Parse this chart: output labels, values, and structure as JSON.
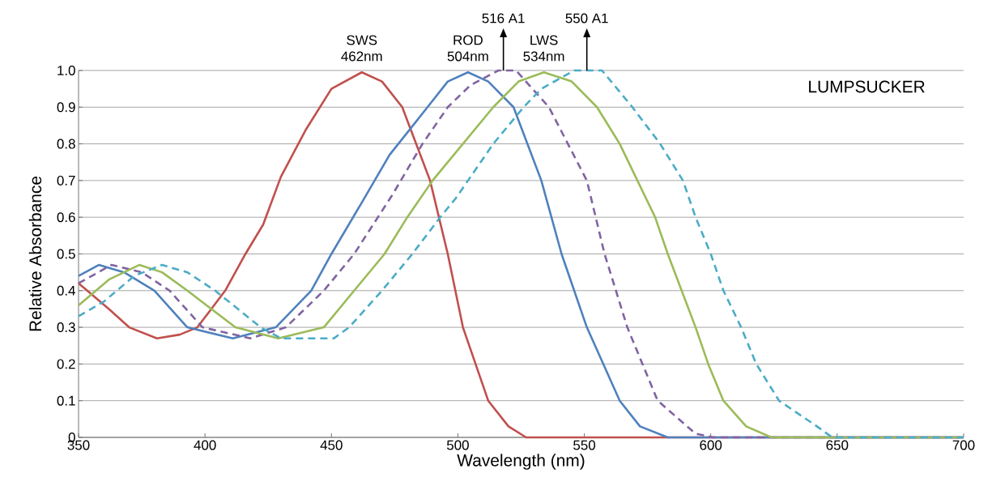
{
  "chart_data": {
    "type": "line",
    "title": "LUMPSUCKER",
    "xlabel": "Wavelength (nm)",
    "ylabel": "Relative Absorbance",
    "xlim": [
      350,
      700
    ],
    "ylim": [
      0,
      1.0
    ],
    "xticks": [
      350,
      400,
      450,
      500,
      550,
      600,
      650,
      700
    ],
    "yticks": [
      0,
      0.1,
      0.2,
      0.3,
      0.4,
      0.5,
      0.6,
      0.7,
      0.8,
      0.9,
      {
        "value": 1.0,
        "label": "1.0"
      }
    ],
    "grid": "y",
    "marker": "none",
    "annotations": [
      {
        "text": "SWS 462nm",
        "x": 462,
        "y": 1.0
      },
      {
        "text": "ROD 504nm",
        "x": 504,
        "y": 1.0
      },
      {
        "text": "LWS 534nm",
        "x": 534,
        "y": 1.0
      },
      {
        "text": "516 A1",
        "x": 518,
        "y": 1.0
      },
      {
        "text": "550 A1",
        "x": 551,
        "y": 1.0
      }
    ],
    "series": [
      {
        "color": "#c0504d",
        "line_style": "solid",
        "x": [
          350,
          362,
          370,
          381,
          390,
          397,
          408,
          416,
          423,
          430,
          440,
          450,
          462,
          470,
          478,
          489,
          496,
          502,
          512,
          520,
          527,
          700
        ],
        "values": [
          0.42,
          0.35,
          0.3,
          0.27,
          0.28,
          0.3,
          0.4,
          0.5,
          0.58,
          0.71,
          0.84,
          0.95,
          0.995,
          0.97,
          0.9,
          0.7,
          0.5,
          0.3,
          0.1,
          0.03,
          0,
          0
        ]
      },
      {
        "color": "#4f81bd",
        "line_style": "solid",
        "x": [
          350,
          358,
          368,
          380,
          393,
          411,
          428,
          442,
          450,
          462,
          473,
          488,
          496,
          504,
          512,
          522,
          533,
          541,
          551,
          564,
          572,
          583,
          700
        ],
        "values": [
          0.44,
          0.47,
          0.45,
          0.4,
          0.3,
          0.27,
          0.3,
          0.4,
          0.5,
          0.64,
          0.77,
          0.9,
          0.97,
          0.995,
          0.97,
          0.9,
          0.7,
          0.5,
          0.3,
          0.1,
          0.03,
          0,
          0
        ]
      },
      {
        "color": "#8064a2",
        "line_style": "dashed",
        "x": [
          350,
          363,
          375,
          386,
          399,
          418,
          432,
          447,
          459,
          474,
          486,
          496,
          505,
          516,
          523,
          536,
          551,
          558,
          567,
          579,
          594,
          601,
          700
        ],
        "values": [
          0.42,
          0.47,
          0.45,
          0.4,
          0.3,
          0.27,
          0.3,
          0.4,
          0.5,
          0.66,
          0.8,
          0.9,
          0.96,
          1.0,
          1.0,
          0.9,
          0.7,
          0.5,
          0.3,
          0.1,
          0.01,
          0,
          0
        ]
      },
      {
        "color": "#9bbb59",
        "line_style": "solid",
        "x": [
          350,
          362,
          374,
          383,
          393,
          412,
          429,
          447,
          459,
          471,
          480,
          490,
          502,
          514,
          524,
          534,
          545,
          555,
          564,
          571,
          578,
          583,
          594,
          599,
          605,
          614,
          624,
          700
        ],
        "values": [
          0.36,
          0.43,
          0.47,
          0.45,
          0.4,
          0.3,
          0.27,
          0.3,
          0.4,
          0.5,
          0.6,
          0.7,
          0.8,
          0.9,
          0.97,
          0.995,
          0.97,
          0.9,
          0.8,
          0.7,
          0.6,
          0.5,
          0.3,
          0.2,
          0.1,
          0.03,
          0,
          0
        ]
      },
      {
        "color": "#4bacc6",
        "line_style": "dashed",
        "x": [
          350,
          360,
          372,
          383,
          393,
          404,
          422,
          430,
          451,
          457,
          470,
          482,
          493,
          499,
          504,
          514,
          526,
          533,
          546,
          557,
          569,
          580,
          589,
          594,
          600,
          605,
          612,
          618,
          627,
          642,
          648,
          700
        ],
        "values": [
          0.33,
          0.37,
          0.44,
          0.47,
          0.45,
          0.4,
          0.3,
          0.27,
          0.27,
          0.3,
          0.4,
          0.5,
          0.6,
          0.65,
          0.7,
          0.8,
          0.9,
          0.95,
          1.0,
          1.0,
          0.9,
          0.8,
          0.7,
          0.6,
          0.5,
          0.4,
          0.3,
          0.2,
          0.1,
          0.03,
          0,
          0
        ]
      }
    ]
  }
}
